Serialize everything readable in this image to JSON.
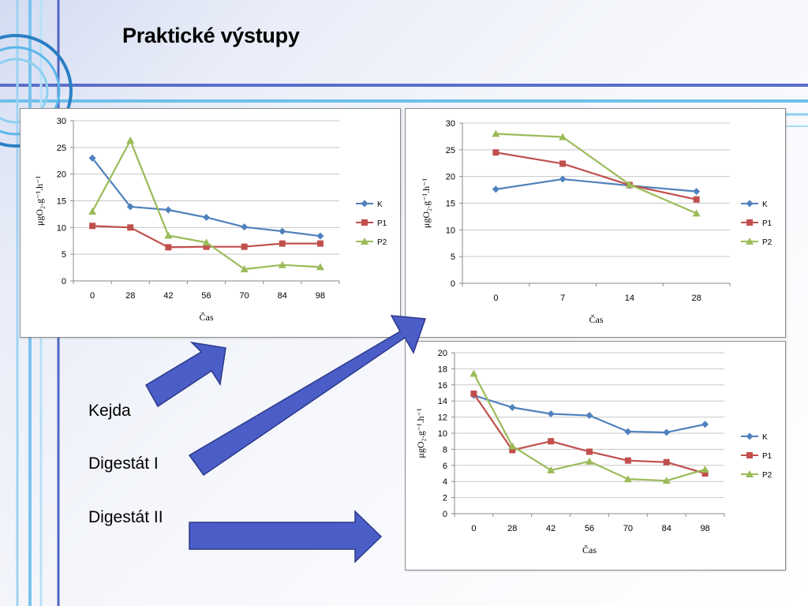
{
  "slide": {
    "title": "Praktické výstupy",
    "labels": [
      "Kejda",
      "Digestát I",
      "Digestát II"
    ]
  },
  "colors": {
    "K": "#4f81bd",
    "P1": "#c0504d",
    "P2": "#9bbb59"
  },
  "chart_data": [
    {
      "type": "line",
      "title": "",
      "xlabel": "Čas",
      "ylabel": "μgO₂.g⁻¹.h⁻¹",
      "categories": [
        "0",
        "28",
        "42",
        "56",
        "70",
        "84",
        "98"
      ],
      "ylim": [
        0,
        30
      ],
      "yticks": [
        0,
        5,
        10,
        15,
        20,
        25,
        30
      ],
      "grid": true,
      "legend": "right",
      "series": [
        {
          "name": "K",
          "marker": "diamond",
          "values": [
            23.0,
            13.9,
            13.3,
            11.9,
            10.1,
            9.3,
            8.4
          ]
        },
        {
          "name": "P1",
          "marker": "square",
          "values": [
            10.3,
            10.0,
            6.3,
            6.4,
            6.4,
            7.0,
            7.0
          ]
        },
        {
          "name": "P2",
          "marker": "triangle",
          "values": [
            13.0,
            26.3,
            8.5,
            7.2,
            2.2,
            3.0,
            2.6
          ]
        }
      ]
    },
    {
      "type": "line",
      "title": "",
      "xlabel": "Čas",
      "ylabel": "μgO₂.g⁻¹.h⁻¹",
      "categories": [
        "0",
        "7",
        "14",
        "28"
      ],
      "ylim": [
        0,
        30
      ],
      "yticks": [
        0,
        5,
        10,
        15,
        20,
        25,
        30
      ],
      "grid": true,
      "legend": "right",
      "series": [
        {
          "name": "K",
          "marker": "diamond",
          "values": [
            17.6,
            19.5,
            18.3,
            17.2
          ]
        },
        {
          "name": "P1",
          "marker": "square",
          "values": [
            24.5,
            22.4,
            18.4,
            15.7
          ]
        },
        {
          "name": "P2",
          "marker": "triangle",
          "values": [
            28.0,
            27.4,
            18.5,
            13.1
          ]
        }
      ]
    },
    {
      "type": "line",
      "title": "",
      "xlabel": "Čas",
      "ylabel": "μgO₂.g⁻¹.h⁻¹",
      "categories": [
        "0",
        "28",
        "42",
        "56",
        "70",
        "84",
        "98"
      ],
      "ylim": [
        0,
        20
      ],
      "yticks": [
        0,
        2,
        4,
        6,
        8,
        10,
        12,
        14,
        16,
        18,
        20
      ],
      "grid": true,
      "legend": "right",
      "series": [
        {
          "name": "K",
          "marker": "diamond",
          "values": [
            14.7,
            13.2,
            12.4,
            12.2,
            10.2,
            10.1,
            11.1
          ]
        },
        {
          "name": "P1",
          "marker": "square",
          "values": [
            14.9,
            7.9,
            9.0,
            7.7,
            6.6,
            6.4,
            5.0
          ]
        },
        {
          "name": "P2",
          "marker": "triangle",
          "values": [
            17.4,
            8.4,
            5.4,
            6.5,
            4.3,
            4.1,
            5.5
          ]
        }
      ]
    }
  ]
}
